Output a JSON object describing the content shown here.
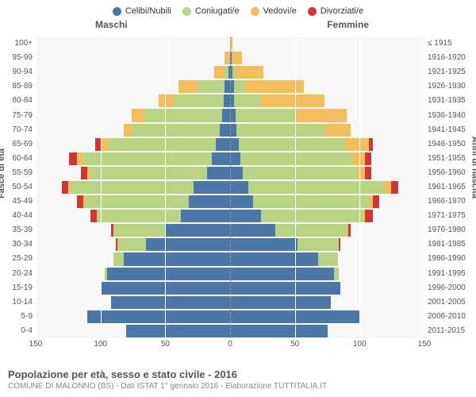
{
  "legend": [
    {
      "label": "Celibi/Nubili",
      "color": "#4b77a7"
    },
    {
      "label": "Coniugati/e",
      "color": "#b6d484"
    },
    {
      "label": "Vedovi/e",
      "color": "#f2bd5c"
    },
    {
      "label": "Divorziati/e",
      "color": "#cd3734"
    }
  ],
  "gender": {
    "male": "Maschi",
    "female": "Femmine"
  },
  "y_left_title": "Fasce di età",
  "y_right_title": "Anni di nascita",
  "age_labels": [
    "100+",
    "95-99",
    "90-94",
    "85-89",
    "80-84",
    "75-79",
    "70-74",
    "65-69",
    "60-64",
    "55-59",
    "50-54",
    "45-49",
    "40-44",
    "35-39",
    "30-34",
    "25-29",
    "20-24",
    "15-19",
    "10-14",
    "5-9",
    "0-4"
  ],
  "birth_labels": [
    "≤ 1915",
    "1916-1920",
    "1921-1925",
    "1926-1930",
    "1931-1935",
    "1936-1940",
    "1941-1945",
    "1946-1950",
    "1951-1955",
    "1956-1960",
    "1961-1965",
    "1966-1970",
    "1971-1975",
    "1976-1980",
    "1981-1985",
    "1986-1990",
    "1991-1995",
    "1996-2000",
    "2001-2005",
    "2006-2010",
    "2011-2015"
  ],
  "x_max": 150,
  "x_ticks": [
    -150,
    -100,
    -50,
    0,
    50,
    100,
    150
  ],
  "colors": {
    "single": "#4b77a7",
    "married": "#b6d484",
    "widowed": "#f2bd5c",
    "divorced": "#cd3734",
    "bg": "#f7f7f7"
  },
  "male": [
    {
      "single": 0,
      "married": 0,
      "widowed": 0,
      "divorced": 0
    },
    {
      "single": 0,
      "married": 0,
      "widowed": 4,
      "divorced": 0
    },
    {
      "single": 1,
      "married": 4,
      "widowed": 7,
      "divorced": 0
    },
    {
      "single": 4,
      "married": 21,
      "widowed": 15,
      "divorced": 0
    },
    {
      "single": 5,
      "married": 38,
      "widowed": 12,
      "divorced": 0
    },
    {
      "single": 6,
      "married": 60,
      "widowed": 10,
      "divorced": 0
    },
    {
      "single": 8,
      "married": 68,
      "widowed": 6,
      "divorced": 0
    },
    {
      "single": 11,
      "married": 83,
      "widowed": 6,
      "divorced": 4
    },
    {
      "single": 14,
      "married": 100,
      "widowed": 4,
      "divorced": 6
    },
    {
      "single": 18,
      "married": 90,
      "widowed": 2,
      "divorced": 5
    },
    {
      "single": 28,
      "married": 95,
      "widowed": 2,
      "divorced": 5
    },
    {
      "single": 32,
      "married": 80,
      "widowed": 1,
      "divorced": 5
    },
    {
      "single": 38,
      "married": 64,
      "widowed": 1,
      "divorced": 5
    },
    {
      "single": 50,
      "married": 40,
      "widowed": 0,
      "divorced": 2
    },
    {
      "single": 65,
      "married": 22,
      "widowed": 0,
      "divorced": 1
    },
    {
      "single": 82,
      "married": 8,
      "widowed": 0,
      "divorced": 0
    },
    {
      "single": 95,
      "married": 2,
      "widowed": 0,
      "divorced": 0
    },
    {
      "single": 100,
      "married": 0,
      "widowed": 0,
      "divorced": 0
    },
    {
      "single": 92,
      "married": 0,
      "widowed": 0,
      "divorced": 0
    },
    {
      "single": 110,
      "married": 0,
      "widowed": 0,
      "divorced": 0
    },
    {
      "single": 80,
      "married": 0,
      "widowed": 0,
      "divorced": 0
    }
  ],
  "female": [
    {
      "single": 0,
      "married": 0,
      "widowed": 2,
      "divorced": 0
    },
    {
      "single": 1,
      "married": 0,
      "widowed": 8,
      "divorced": 0
    },
    {
      "single": 2,
      "married": 2,
      "widowed": 22,
      "divorced": 0
    },
    {
      "single": 3,
      "married": 9,
      "widowed": 45,
      "divorced": 0
    },
    {
      "single": 3,
      "married": 20,
      "widowed": 50,
      "divorced": 0
    },
    {
      "single": 4,
      "married": 46,
      "widowed": 40,
      "divorced": 0
    },
    {
      "single": 5,
      "married": 68,
      "widowed": 20,
      "divorced": 0
    },
    {
      "single": 7,
      "married": 82,
      "widowed": 18,
      "divorced": 3
    },
    {
      "single": 8,
      "married": 86,
      "widowed": 10,
      "divorced": 5
    },
    {
      "single": 10,
      "married": 88,
      "widowed": 6,
      "divorced": 5
    },
    {
      "single": 14,
      "married": 105,
      "widowed": 5,
      "divorced": 6
    },
    {
      "single": 18,
      "married": 90,
      "widowed": 2,
      "divorced": 5
    },
    {
      "single": 24,
      "married": 78,
      "widowed": 2,
      "divorced": 6
    },
    {
      "single": 35,
      "married": 55,
      "widowed": 1,
      "divorced": 2
    },
    {
      "single": 52,
      "married": 32,
      "widowed": 0,
      "divorced": 1
    },
    {
      "single": 68,
      "married": 15,
      "widowed": 0,
      "divorced": 0
    },
    {
      "single": 80,
      "married": 4,
      "widowed": 0,
      "divorced": 0
    },
    {
      "single": 85,
      "married": 0,
      "widowed": 0,
      "divorced": 0
    },
    {
      "single": 78,
      "married": 0,
      "widowed": 0,
      "divorced": 0
    },
    {
      "single": 100,
      "married": 0,
      "widowed": 0,
      "divorced": 0
    },
    {
      "single": 75,
      "married": 0,
      "widowed": 0,
      "divorced": 0
    }
  ],
  "title": "Popolazione per età, sesso e stato civile - 2016",
  "subtitle": "COMUNE DI MALONNO (BS) - Dati ISTAT 1° gennaio 2016 - Elaborazione TUTTITALIA.IT"
}
